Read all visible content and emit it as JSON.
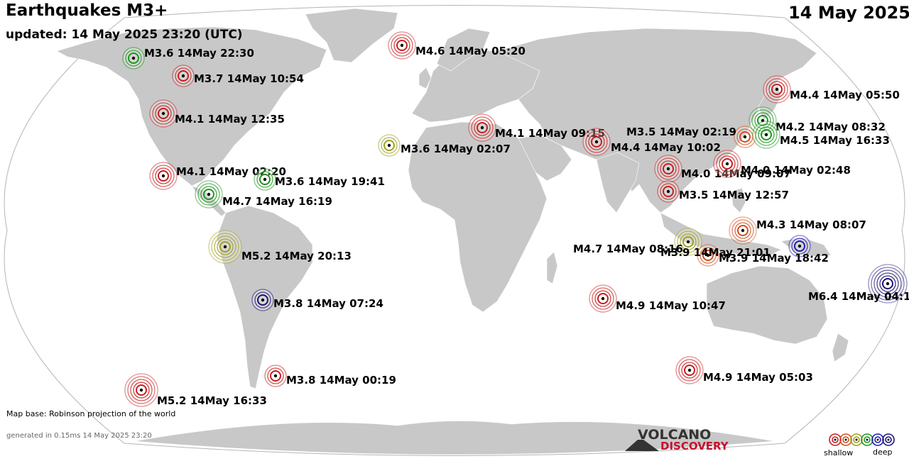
{
  "header": {
    "title": "Earthquakes M3+",
    "subtitle": "updated: 14 May 2025 23:20 (UTC)",
    "date": "14 May 2025"
  },
  "footer": {
    "map_base": "Map base: Robinson projection of the world",
    "generated": "generated in 0.15ms 14 May 2025 23:20"
  },
  "logo": {
    "line1": "VOLCANO",
    "line2": "DISCOVERY"
  },
  "legend": {
    "shallow_label": "shallow",
    "deep_label": "deep",
    "colors": [
      "#c81e1e",
      "#d2501e",
      "#a0a01e",
      "#1e961e",
      "#1e1eb4",
      "#1e1478"
    ]
  },
  "colors": {
    "ocean": "#ffffff",
    "land": "#c8c8c8",
    "outline": "#b4b4b4"
  },
  "quakes": [
    {
      "label": "M3.6 14May 22:30",
      "color": "#1e961e",
      "size": 1
    },
    {
      "label": "M3.7 14May 10:54",
      "color": "#c81e1e",
      "size": 1
    },
    {
      "label": "M4.1 14May 12:35",
      "color": "#c81e1e",
      "size": 2
    },
    {
      "label": "M4.6 14May 05:20",
      "color": "#c81e1e",
      "size": 2
    },
    {
      "label": "M4.4 14May 05:50",
      "color": "#c81e1e",
      "size": 2
    },
    {
      "label": "M4.1 14May 09:15",
      "color": "#c81e1e",
      "size": 2
    },
    {
      "label": "M3.6 14May 02:07",
      "color": "#a0a01e",
      "size": 1
    },
    {
      "label": "M3.5 14May 02:19",
      "color": "#d2501e",
      "size": 1
    },
    {
      "label": "M4.2 14May 08:32",
      "color": "#1e961e",
      "size": 2
    },
    {
      "label": "M4.5 14May 16:33",
      "color": "#1e961e",
      "size": 2
    },
    {
      "label": "M4.4 14May 10:02",
      "color": "#c81e1e",
      "size": 2
    },
    {
      "label": "M4.0 14May 09:07",
      "color": "#c81e1e",
      "size": 2
    },
    {
      "label": "M4.0 14May 02:48",
      "color": "#c81e1e",
      "size": 2
    },
    {
      "label": "M4.1 14May 02:20",
      "color": "#c81e1e",
      "size": 2
    },
    {
      "label": "M3.6 14May 19:41",
      "color": "#1e961e",
      "size": 1
    },
    {
      "label": "M4.7 14May 16:19",
      "color": "#1e961e",
      "size": 2
    },
    {
      "label": "M3.5 14May 12:57",
      "color": "#c81e1e",
      "size": 1
    },
    {
      "label": "M4.3 14May 08:07",
      "color": "#d2501e",
      "size": 2
    },
    {
      "label": "M5.2 14May 20:13",
      "color": "#a0a01e",
      "size": 3
    },
    {
      "label": "M4.7 14May 08:16",
      "color": "#a0a01e",
      "size": 2
    },
    {
      "label": "M3.9 14May 21:01",
      "color": "#d2501e",
      "size": 1
    },
    {
      "label": "M3.9 14May 18:42",
      "color": "#1e1eb4",
      "size": 1
    },
    {
      "label": "M6.4 14May 04:1",
      "color": "#1e1478",
      "size": 4
    },
    {
      "label": "M3.8 14May 07:24",
      "color": "#1e1478",
      "size": 1
    },
    {
      "label": "M4.9 14May 10:47",
      "color": "#c81e1e",
      "size": 2
    },
    {
      "label": "M3.8 14May 00:19",
      "color": "#c81e1e",
      "size": 1
    },
    {
      "label": "M4.9 14May 05:03",
      "color": "#c81e1e",
      "size": 2
    },
    {
      "label": "M5.2 14May 16:33",
      "color": "#c81e1e",
      "size": 3
    }
  ]
}
